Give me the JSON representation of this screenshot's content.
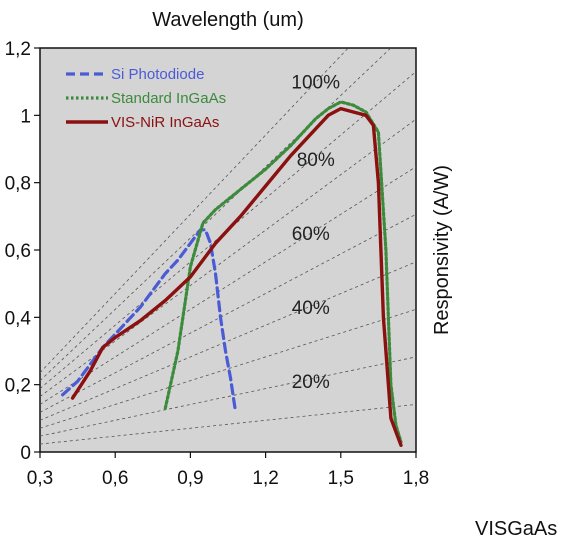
{
  "footer_text": "VISGaAs",
  "chart_data": {
    "type": "line",
    "xlabel": "Wavelength (um)",
    "ylabel": "Responsivity (A/W)",
    "xlim": [
      0.3,
      1.8
    ],
    "ylim": [
      0,
      1.2
    ],
    "xticks": [
      0.3,
      0.6,
      0.9,
      1.2,
      1.5,
      1.8
    ],
    "xtick_labels": [
      "0,3",
      "0,6",
      "0,9",
      "1,2",
      "1,5",
      "1,8"
    ],
    "yticks": [
      0,
      0.2,
      0.4,
      0.6,
      0.8,
      1.0,
      1.2
    ],
    "ytick_labels": [
      "0",
      "0,2",
      "0,4",
      "0,6",
      "0,8",
      "1",
      "1,2"
    ],
    "grid": false,
    "background": "#d4d4d4",
    "legend_position": "top-left",
    "series": [
      {
        "name": "Si Photodiode",
        "color": "#4a5bd6",
        "style": "dashed",
        "x": [
          0.39,
          0.45,
          0.5,
          0.55,
          0.6,
          0.65,
          0.7,
          0.75,
          0.8,
          0.85,
          0.9,
          0.94,
          0.96,
          0.98,
          1.0,
          1.02,
          1.04,
          1.06,
          1.08
        ],
        "y": [
          0.17,
          0.21,
          0.26,
          0.31,
          0.35,
          0.39,
          0.43,
          0.48,
          0.53,
          0.57,
          0.62,
          0.66,
          0.66,
          0.62,
          0.53,
          0.4,
          0.3,
          0.22,
          0.12
        ]
      },
      {
        "name": "Standard InGaAs",
        "color": "#3c8a3c",
        "style": "dotted",
        "x": [
          0.8,
          0.85,
          0.9,
          0.95,
          1.0,
          1.05,
          1.1,
          1.2,
          1.3,
          1.4,
          1.45,
          1.5,
          1.55,
          1.6,
          1.65,
          1.68,
          1.7,
          1.72,
          1.74
        ],
        "y": [
          0.13,
          0.3,
          0.55,
          0.68,
          0.72,
          0.75,
          0.78,
          0.84,
          0.91,
          0.99,
          1.02,
          1.04,
          1.03,
          1.01,
          0.95,
          0.6,
          0.2,
          0.08,
          0.03
        ]
      },
      {
        "name": "VIS-NiR InGaAs",
        "color": "#8b1010",
        "style": "solid",
        "x": [
          0.43,
          0.5,
          0.55,
          0.6,
          0.7,
          0.8,
          0.9,
          1.0,
          1.1,
          1.2,
          1.3,
          1.4,
          1.45,
          1.5,
          1.55,
          1.6,
          1.63,
          1.65,
          1.67,
          1.7,
          1.72,
          1.74
        ],
        "y": [
          0.16,
          0.24,
          0.31,
          0.34,
          0.39,
          0.45,
          0.52,
          0.62,
          0.7,
          0.79,
          0.88,
          0.96,
          1.0,
          1.02,
          1.01,
          1.0,
          0.97,
          0.8,
          0.4,
          0.1,
          0.06,
          0.02
        ]
      }
    ],
    "annotations": [
      "100%",
      "80%",
      "60%",
      "40%",
      "20%"
    ]
  }
}
